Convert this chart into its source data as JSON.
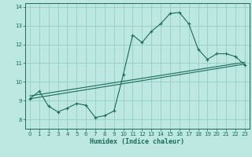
{
  "title": "",
  "xlabel": "Humidex (Indice chaleur)",
  "ylabel": "",
  "bg_color": "#bde8e2",
  "grid_color": "#9dd0c8",
  "line_color": "#1a6b5a",
  "xlim": [
    -0.5,
    23.5
  ],
  "ylim": [
    7.5,
    14.2
  ],
  "xticks": [
    0,
    1,
    2,
    3,
    4,
    5,
    6,
    7,
    8,
    9,
    10,
    11,
    12,
    13,
    14,
    15,
    16,
    17,
    18,
    19,
    20,
    21,
    22,
    23
  ],
  "yticks": [
    8,
    9,
    10,
    11,
    12,
    13,
    14
  ],
  "curve1_x": [
    0,
    1,
    2,
    3,
    4,
    5,
    6,
    7,
    8,
    9,
    10,
    11,
    12,
    13,
    14,
    15,
    16,
    17,
    18,
    19,
    20,
    21,
    22,
    23
  ],
  "curve1_y": [
    9.1,
    9.5,
    8.7,
    8.4,
    8.6,
    8.85,
    8.75,
    8.1,
    8.2,
    8.45,
    10.4,
    12.5,
    12.1,
    12.7,
    13.1,
    13.65,
    13.7,
    13.1,
    11.75,
    11.2,
    11.5,
    11.5,
    11.35,
    10.9
  ],
  "curve2_x": [
    0,
    23
  ],
  "curve2_y": [
    9.1,
    10.95
  ],
  "curve3_x": [
    0,
    23
  ],
  "curve3_y": [
    9.25,
    11.05
  ],
  "xlabel_fontsize": 6,
  "tick_fontsize": 5
}
